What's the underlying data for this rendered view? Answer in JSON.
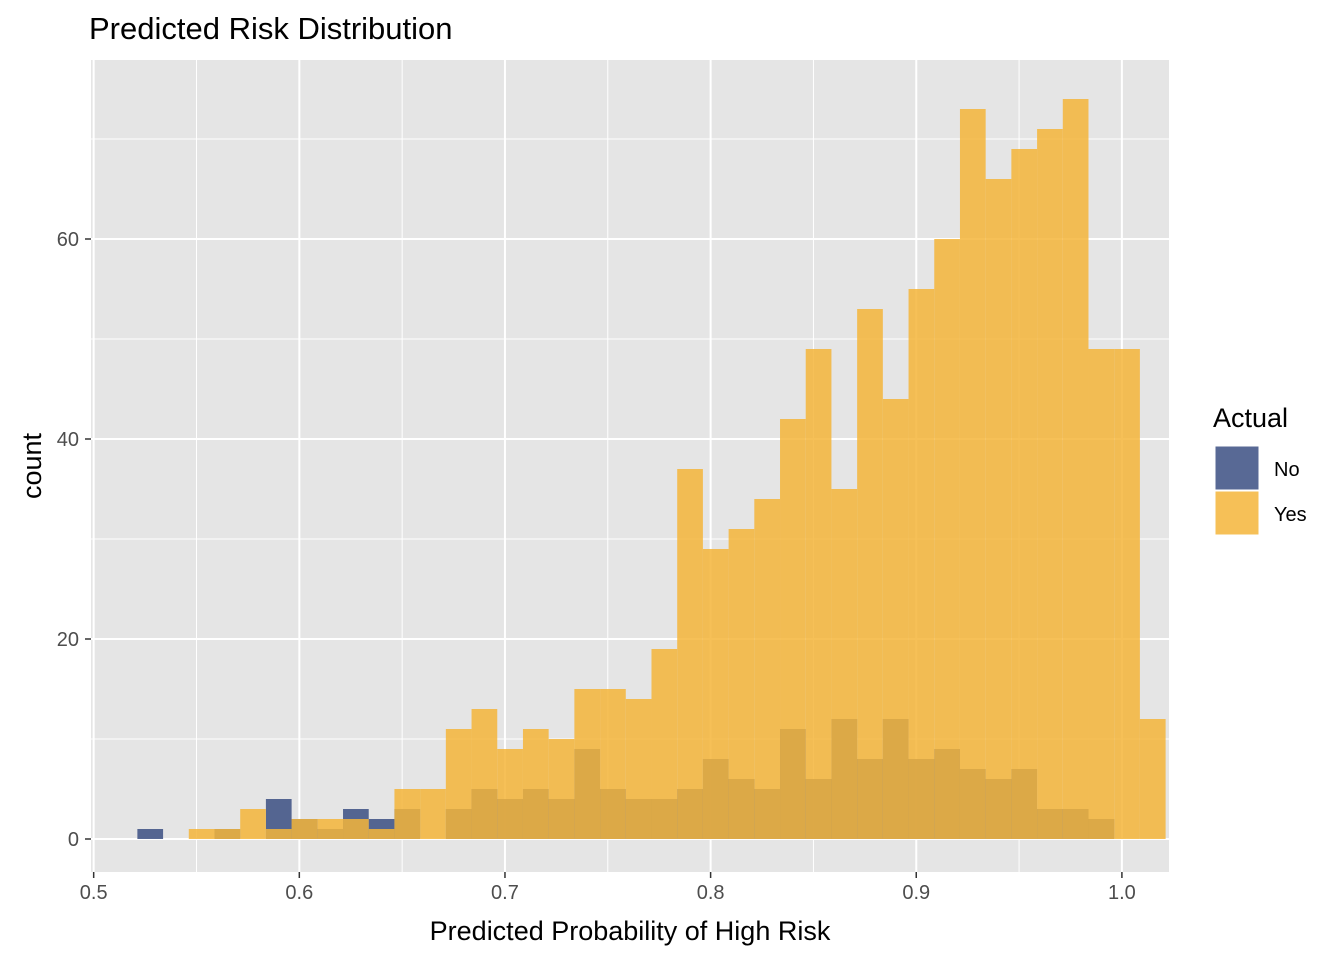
{
  "chart_data": {
    "type": "histogram",
    "title": "Predicted Risk Distribution",
    "xlabel": "Predicted Probability of High Risk",
    "ylabel": "count",
    "xlim": [
      0.5,
      1.0
    ],
    "ylim": [
      0,
      75
    ],
    "x_ticks": [
      "0.5",
      "0.6",
      "0.7",
      "0.8",
      "0.9",
      "1.0"
    ],
    "y_ticks": [
      "0",
      "20",
      "40",
      "60"
    ],
    "grid": true,
    "bin_width": 0.0125,
    "legend": {
      "title": "Actual",
      "position": "right",
      "items": [
        {
          "label": "No",
          "color": "#3b4f82"
        },
        {
          "label": "Yes",
          "color": "#f5b53a"
        }
      ]
    },
    "series": [
      {
        "name": "No",
        "color": "#3b4f82",
        "bins": [
          {
            "x": 0.5275,
            "count": 1
          },
          {
            "x": 0.565,
            "count": 1
          },
          {
            "x": 0.59,
            "count": 4
          },
          {
            "x": 0.6025,
            "count": 2
          },
          {
            "x": 0.615,
            "count": 1
          },
          {
            "x": 0.6275,
            "count": 3
          },
          {
            "x": 0.64,
            "count": 2
          },
          {
            "x": 0.6525,
            "count": 3
          },
          {
            "x": 0.665,
            "count": 0
          },
          {
            "x": 0.6775,
            "count": 3
          },
          {
            "x": 0.69,
            "count": 5
          },
          {
            "x": 0.7025,
            "count": 4
          },
          {
            "x": 0.715,
            "count": 5
          },
          {
            "x": 0.7275,
            "count": 4
          },
          {
            "x": 0.74,
            "count": 9
          },
          {
            "x": 0.7525,
            "count": 5
          },
          {
            "x": 0.765,
            "count": 4
          },
          {
            "x": 0.7775,
            "count": 4
          },
          {
            "x": 0.79,
            "count": 5
          },
          {
            "x": 0.8025,
            "count": 8
          },
          {
            "x": 0.815,
            "count": 6
          },
          {
            "x": 0.8275,
            "count": 5
          },
          {
            "x": 0.84,
            "count": 11
          },
          {
            "x": 0.8525,
            "count": 6
          },
          {
            "x": 0.865,
            "count": 12
          },
          {
            "x": 0.8775,
            "count": 8
          },
          {
            "x": 0.89,
            "count": 12
          },
          {
            "x": 0.9025,
            "count": 8
          },
          {
            "x": 0.915,
            "count": 9
          },
          {
            "x": 0.9275,
            "count": 7
          },
          {
            "x": 0.94,
            "count": 6
          },
          {
            "x": 0.9525,
            "count": 7
          },
          {
            "x": 0.965,
            "count": 3
          },
          {
            "x": 0.9775,
            "count": 3
          },
          {
            "x": 0.99,
            "count": 2
          }
        ]
      },
      {
        "name": "Yes",
        "color": "#f5b53a",
        "bins": [
          {
            "x": 0.5525,
            "count": 1
          },
          {
            "x": 0.565,
            "count": 1
          },
          {
            "x": 0.5775,
            "count": 3
          },
          {
            "x": 0.59,
            "count": 1
          },
          {
            "x": 0.6025,
            "count": 2
          },
          {
            "x": 0.615,
            "count": 2
          },
          {
            "x": 0.6275,
            "count": 2
          },
          {
            "x": 0.64,
            "count": 1
          },
          {
            "x": 0.6525,
            "count": 5
          },
          {
            "x": 0.665,
            "count": 5
          },
          {
            "x": 0.6775,
            "count": 11
          },
          {
            "x": 0.69,
            "count": 13
          },
          {
            "x": 0.7025,
            "count": 9
          },
          {
            "x": 0.715,
            "count": 11
          },
          {
            "x": 0.7275,
            "count": 10
          },
          {
            "x": 0.74,
            "count": 15
          },
          {
            "x": 0.7525,
            "count": 15
          },
          {
            "x": 0.765,
            "count": 14
          },
          {
            "x": 0.7775,
            "count": 19
          },
          {
            "x": 0.79,
            "count": 37
          },
          {
            "x": 0.8025,
            "count": 29
          },
          {
            "x": 0.815,
            "count": 31
          },
          {
            "x": 0.8275,
            "count": 34
          },
          {
            "x": 0.84,
            "count": 42
          },
          {
            "x": 0.8525,
            "count": 49
          },
          {
            "x": 0.865,
            "count": 35
          },
          {
            "x": 0.8775,
            "count": 53
          },
          {
            "x": 0.89,
            "count": 44
          },
          {
            "x": 0.9025,
            "count": 55
          },
          {
            "x": 0.915,
            "count": 60
          },
          {
            "x": 0.9275,
            "count": 73
          },
          {
            "x": 0.94,
            "count": 66
          },
          {
            "x": 0.9525,
            "count": 69
          },
          {
            "x": 0.965,
            "count": 71
          },
          {
            "x": 0.9775,
            "count": 74
          },
          {
            "x": 0.99,
            "count": 49
          },
          {
            "x": 1.0025,
            "count": 49
          },
          {
            "x": 1.015,
            "count": 12
          }
        ]
      }
    ],
    "panel_background": "#e5e5e5",
    "gridline_color": "#ffffff",
    "bar_opacity": 0.85
  }
}
